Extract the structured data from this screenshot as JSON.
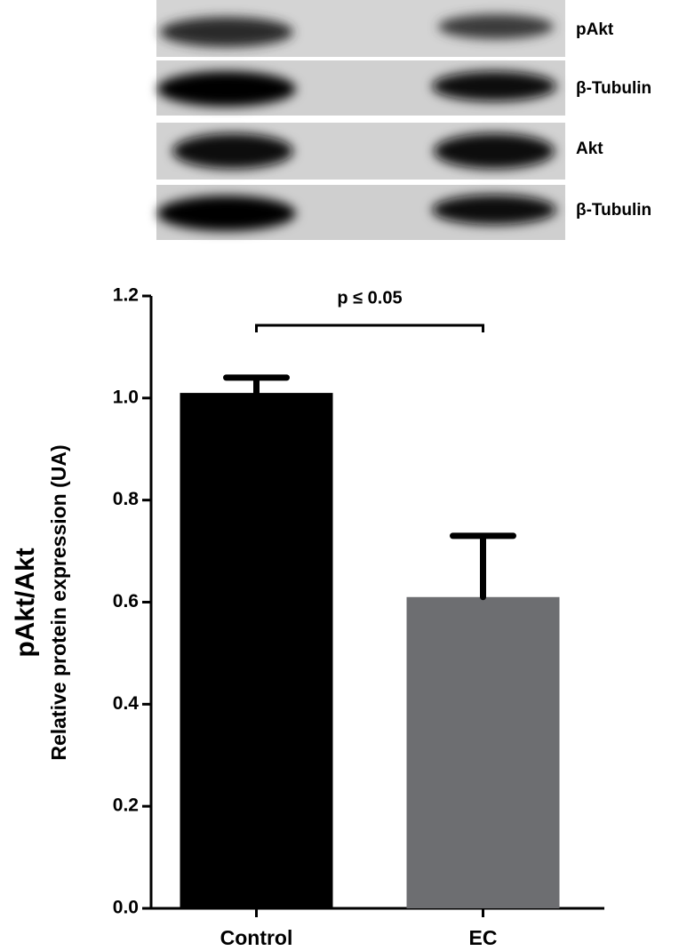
{
  "blot": {
    "labels": [
      "pAkt",
      "β-Tubulin",
      "Akt",
      "β-Tubulin"
    ]
  },
  "chart_data": {
    "type": "bar",
    "categories": [
      "Control",
      "EC"
    ],
    "values": [
      1.01,
      0.61
    ],
    "errors": [
      0.03,
      0.12
    ],
    "colors": [
      "#000000",
      "#6d6e71"
    ],
    "ylabel": "pAkt/Akt",
    "ylabel_sub": "Relative protein expression (UA)",
    "annotation": "p ≤ 0.05",
    "ylim": [
      0,
      1.2
    ],
    "yticks": [
      {
        "value": 0,
        "label": "0.0"
      },
      0.2,
      0.4,
      0.6,
      0.8,
      {
        "value": 1,
        "label": "1.0"
      },
      1.2
    ],
    "grid": false
  }
}
